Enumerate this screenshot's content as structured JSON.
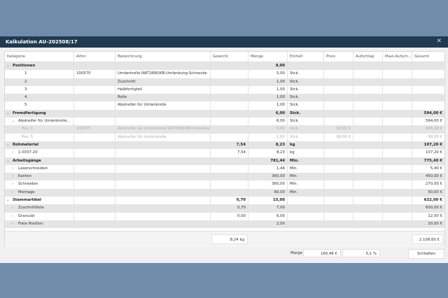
{
  "window": {
    "title": "Kalkulation AU-202508/17",
    "close_icon": "close-icon"
  },
  "columns": [
    "Kategorie",
    "Artnr.",
    "Bezeichnung",
    "Gewicht",
    "Menge",
    "Einheit",
    "Preis",
    "Aufschlag",
    "Maxi-Aufsch...",
    "Gesamt"
  ],
  "rows": [
    {
      "level": 0,
      "chev": "v",
      "cells": [
        "Positionen",
        "",
        "",
        "",
        "9,00",
        "",
        "",
        "",
        "",
        ""
      ],
      "style": "bold"
    },
    {
      "level": 2,
      "chev": "",
      "cells": [
        "1",
        "100570",
        "Umlenkrolle NAT1890/KB-Umlenkung-Schnecke",
        "",
        "5,00",
        "Stck.",
        "",
        "",
        "",
        ""
      ]
    },
    {
      "level": 2,
      "chev": "",
      "cells": [
        "2",
        "",
        "Zuschnitt",
        "",
        "1,00",
        "Stck.",
        "",
        "",
        "",
        ""
      ]
    },
    {
      "level": 2,
      "chev": "",
      "cells": [
        "3",
        "",
        "Halbfertigteil",
        "",
        "1,00",
        "Stck.",
        "",
        "",
        "",
        ""
      ]
    },
    {
      "level": 2,
      "chev": "",
      "cells": [
        "4",
        "",
        "Rolle",
        "",
        "1,00",
        "Stck.",
        "",
        "",
        "",
        ""
      ]
    },
    {
      "level": 2,
      "chev": "",
      "cells": [
        "5",
        "",
        "Abstreifer für Umlenkrolle",
        "",
        "1,00",
        "Stck.",
        "",
        "",
        "",
        ""
      ]
    },
    {
      "level": 0,
      "chev": "v",
      "cells": [
        "Fremdfertigung",
        "",
        "",
        "",
        "6,00",
        "Stck.",
        "",
        "",
        "",
        "594,00 €"
      ],
      "style": "bold"
    },
    {
      "level": 1,
      "chev": "v",
      "cells": [
        "Abstreifer für Umlenkrolle...",
        "",
        "",
        "",
        "6,00",
        "Stck.",
        "",
        "",
        "",
        "594,00 €"
      ]
    },
    {
      "level": 3,
      "chev": "",
      "cells": [
        "Pos. 1",
        "100570",
        "Abstreifer für Umlenkrolle NAT1890/KB-Umlenkun...",
        "",
        "5,00",
        "Stck.",
        "99,00 €",
        "",
        "",
        "495,00 €"
      ],
      "style": "dim"
    },
    {
      "level": 3,
      "chev": "",
      "cells": [
        "Pos. 5",
        "",
        "Abstreifer für Umlenkrolle",
        "",
        "1,00",
        "Stck.",
        "99,00 €",
        "",
        "",
        "99,00 €"
      ],
      "style": "dim"
    },
    {
      "level": 0,
      "chev": "v",
      "cells": [
        "Rohmaterial",
        "",
        "",
        "7,54",
        "8,23",
        "kg",
        "",
        "",
        "",
        "107,20 €"
      ],
      "style": "bold"
    },
    {
      "level": 1,
      "chev": ">",
      "cells": [
        "1.0037-20",
        "",
        "",
        "7,54",
        "8,23",
        "kg",
        "",
        "",
        "",
        "107,20 €"
      ]
    },
    {
      "level": 0,
      "chev": "v",
      "cells": [
        "Arbeitsgänge",
        "",
        "",
        "",
        "781,44",
        "Min.",
        "",
        "",
        "",
        "775,40 €"
      ],
      "style": "bold"
    },
    {
      "level": 1,
      "chev": ">",
      "cells": [
        "Laserschneiden",
        "",
        "",
        "",
        "1,44",
        "Min.",
        "",
        "",
        "",
        "5,40 €"
      ]
    },
    {
      "level": 1,
      "chev": ">",
      "cells": [
        "Kanten",
        "",
        "",
        "",
        "360,00",
        "Min.",
        "",
        "",
        "",
        "450,00 €"
      ]
    },
    {
      "level": 1,
      "chev": ">",
      "cells": [
        "Schneiden",
        "",
        "",
        "",
        "360,00",
        "Min.",
        "",
        "",
        "",
        "270,00 €"
      ]
    },
    {
      "level": 1,
      "chev": ">",
      "cells": [
        "Montage",
        "",
        "",
        "",
        "60,00",
        "Min.",
        "",
        "",
        "",
        "50,00 €"
      ]
    },
    {
      "level": 0,
      "chev": "v",
      "cells": [
        "Stammartikel",
        "",
        "",
        "0,70",
        "15,00",
        "",
        "",
        "",
        "",
        "632,00 €"
      ],
      "style": "bold"
    },
    {
      "level": 1,
      "chev": ">",
      "cells": [
        "Zuschnittliste",
        "",
        "",
        "0,70",
        "7,00",
        "",
        "",
        "",
        "",
        "600,00 €"
      ]
    },
    {
      "level": 1,
      "chev": ">",
      "cells": [
        "Granulat",
        "",
        "",
        "0,00",
        "6,00",
        "",
        "",
        "",
        "",
        "12,00 €"
      ]
    },
    {
      "level": 1,
      "chev": ">",
      "cells": [
        "Freie Position",
        "",
        "",
        "",
        "2,00",
        "",
        "",
        "",
        "",
        "20,00 €"
      ]
    }
  ],
  "totals": {
    "weight": "8,24 kg",
    "total": "2.108,60 €"
  },
  "bottom": {
    "marge_label": "Marge",
    "marge_value": "160,46 €",
    "marge_percent": "5,1 %",
    "close_label": "Schließen"
  }
}
